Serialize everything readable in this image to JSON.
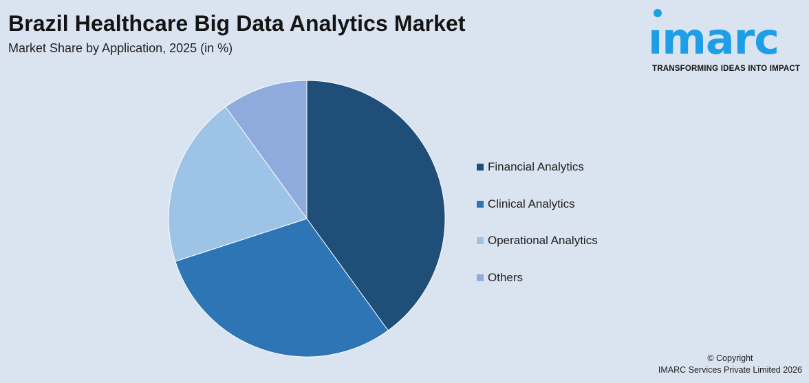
{
  "header": {
    "title": "Brazil Healthcare Big Data Analytics Market",
    "subtitle": "Market Share by Application, 2025 (in %)"
  },
  "logo": {
    "word": "ımarc",
    "tagline": "TRANSFORMING IDEAS INTO IMPACT",
    "color": "#1f9ee8"
  },
  "chart_data": {
    "type": "pie",
    "title": "Brazil Healthcare Big Data Analytics Market",
    "subtitle": "Market Share by Application, 2025 (in %)",
    "legend_position": "right",
    "categories": [
      "Financial Analytics",
      "Clinical Analytics",
      "Operational Analytics",
      "Others"
    ],
    "values": [
      40,
      30,
      20,
      10
    ],
    "colors": [
      "#1f4e79",
      "#2e75b6",
      "#9dc3e6",
      "#8faadc"
    ]
  },
  "footer": {
    "copyright_line1": "© Copyright",
    "copyright_line2": "IMARC Services Private Limited 2026"
  }
}
